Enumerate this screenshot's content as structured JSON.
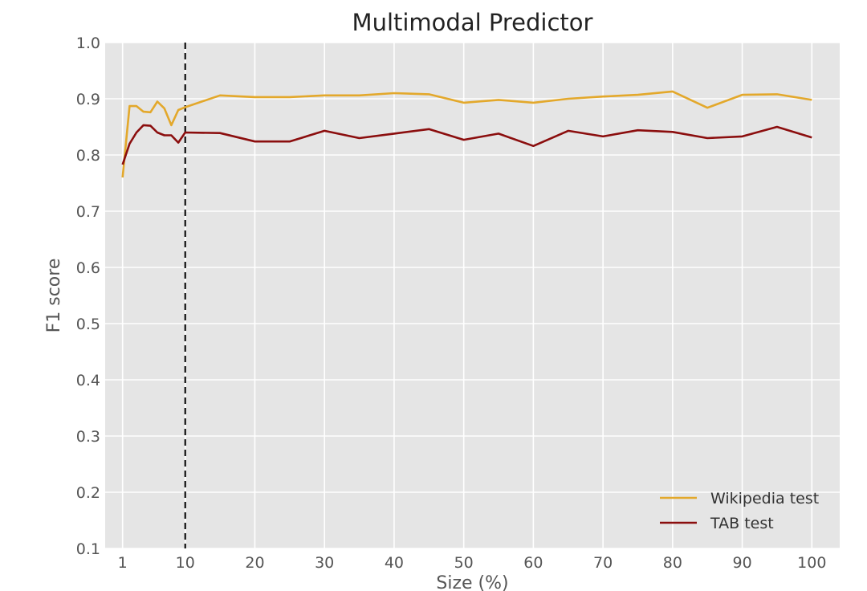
{
  "chart_data": {
    "type": "line",
    "title": "Multimodal Predictor",
    "xlabel": "Size (%)",
    "ylabel": "F1 score",
    "xlim": [
      -1.5,
      104
    ],
    "ylim": [
      0.1,
      1.0
    ],
    "xticks": [
      1,
      10,
      20,
      30,
      40,
      50,
      60,
      70,
      80,
      90,
      100
    ],
    "yticks": [
      0.1,
      0.2,
      0.3,
      0.4,
      0.5,
      0.6,
      0.7,
      0.8,
      0.9,
      1.0
    ],
    "xtick_labels": [
      "1",
      "10",
      "20",
      "30",
      "40",
      "50",
      "60",
      "70",
      "80",
      "90",
      "100"
    ],
    "ytick_labels": [
      "0.1",
      "0.2",
      "0.3",
      "0.4",
      "0.5",
      "0.6",
      "0.7",
      "0.8",
      "0.9",
      "1.0"
    ],
    "grid": true,
    "legend_position": "bottom-right",
    "vline": {
      "x": 10,
      "style": "dashed",
      "color": "#111111"
    },
    "x": [
      1,
      2,
      3,
      4,
      5,
      6,
      7,
      8,
      9,
      10,
      15,
      20,
      25,
      30,
      35,
      40,
      45,
      50,
      55,
      60,
      65,
      70,
      75,
      80,
      85,
      90,
      95,
      100
    ],
    "series": [
      {
        "name": "Wikipedia test",
        "color": "#e3a82b",
        "values": [
          0.76,
          0.887,
          0.887,
          0.877,
          0.876,
          0.895,
          0.883,
          0.853,
          0.88,
          0.885,
          0.906,
          0.903,
          0.903,
          0.906,
          0.906,
          0.91,
          0.908,
          0.893,
          0.898,
          0.893,
          0.9,
          0.904,
          0.907,
          0.913,
          0.884,
          0.907,
          0.908,
          0.898
        ]
      },
      {
        "name": "TAB test",
        "color": "#8b0e0e",
        "values": [
          0.783,
          0.82,
          0.84,
          0.853,
          0.852,
          0.84,
          0.835,
          0.835,
          0.822,
          0.84,
          0.839,
          0.824,
          0.824,
          0.843,
          0.83,
          0.838,
          0.846,
          0.827,
          0.838,
          0.816,
          0.843,
          0.833,
          0.844,
          0.841,
          0.83,
          0.833,
          0.85,
          0.831
        ]
      }
    ]
  }
}
